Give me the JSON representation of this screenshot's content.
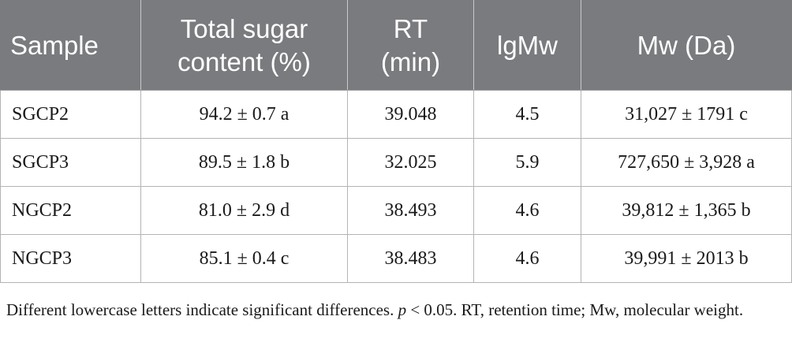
{
  "table": {
    "headers": [
      [
        "Sample"
      ],
      [
        "Total sugar",
        "content (%)"
      ],
      [
        "RT",
        "(min)"
      ],
      [
        "lgMw"
      ],
      [
        "Mw (Da)"
      ]
    ],
    "rows": [
      [
        "SGCP2",
        "94.2 ± 0.7 a",
        "39.048",
        "4.5",
        "31,027 ± 1791 c"
      ],
      [
        "SGCP3",
        "89.5 ± 1.8 b",
        "32.025",
        "5.9",
        "727,650 ± 3,928 a"
      ],
      [
        "NGCP2",
        "81.0 ± 2.9 d",
        "38.493",
        "4.6",
        "39,812 ± 1,365 b"
      ],
      [
        "NGCP3",
        "85.1 ± 0.4 c",
        "38.483",
        "4.6",
        "39,991 ± 2013 b"
      ]
    ]
  },
  "footnote": {
    "text_before": "Different lowercase letters indicate significant differences. ",
    "p_symbol": "p",
    "text_after": " < 0.05. RT, retention time; Mw, molecular weight."
  },
  "colors": {
    "header_background": "#7a7b7e",
    "header_text": "#ffffff",
    "border": "#b4b4b4"
  }
}
